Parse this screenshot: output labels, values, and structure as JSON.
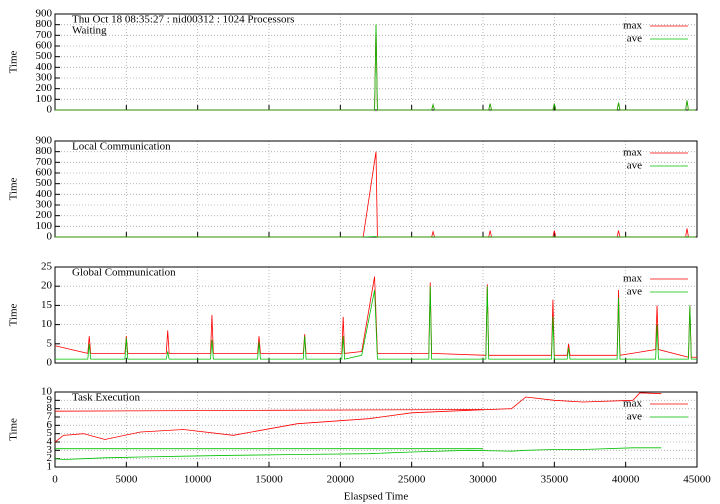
{
  "chart_data": [
    {
      "type": "line",
      "title": "Thu Oct 18 08:35:27 : nid00312 : 1024 Processors",
      "label": "Waiting",
      "ylabel": "Time",
      "x": [
        0,
        22400,
        22500,
        22600,
        26400,
        26500,
        26600,
        30400,
        30500,
        30600,
        34900,
        35000,
        35100,
        39400,
        39500,
        39600,
        44200,
        44300,
        44400,
        44900
      ],
      "series": [
        {
          "name": "max",
          "color": "#ff0000",
          "values": [
            0,
            0,
            800,
            0,
            0,
            50,
            0,
            0,
            60,
            0,
            0,
            60,
            0,
            0,
            70,
            0,
            0,
            90,
            0,
            0
          ]
        },
        {
          "name": "ave",
          "color": "#00c000",
          "values": [
            0,
            0,
            800,
            0,
            0,
            50,
            0,
            0,
            60,
            0,
            0,
            60,
            0,
            0,
            70,
            0,
            0,
            90,
            0,
            0
          ]
        }
      ],
      "xlim": [
        0,
        45000
      ],
      "xticks": [
        0,
        5000,
        10000,
        15000,
        20000,
        25000,
        30000,
        35000,
        40000,
        45000
      ],
      "ylim": [
        0,
        900
      ],
      "yticks": [
        0,
        100,
        200,
        300,
        400,
        500,
        600,
        700,
        800,
        900
      ],
      "grid": true,
      "legend": "upper right"
    },
    {
      "type": "line",
      "label": "Local Communication",
      "ylabel": "Time",
      "x": [
        0,
        21600,
        22500,
        22600,
        26400,
        26500,
        26600,
        30400,
        30500,
        30600,
        34900,
        35000,
        35100,
        39400,
        39500,
        39600,
        44200,
        44300,
        44400,
        44900
      ],
      "series": [
        {
          "name": "max",
          "color": "#ff0000",
          "values": [
            0,
            0,
            800,
            0,
            0,
            50,
            0,
            0,
            60,
            0,
            0,
            60,
            0,
            0,
            60,
            0,
            0,
            80,
            0,
            0
          ]
        },
        {
          "name": "ave",
          "color": "#00c000",
          "values": [
            0,
            0,
            5,
            0,
            0,
            2,
            0,
            0,
            2,
            0,
            0,
            2,
            0,
            0,
            2,
            0,
            0,
            3,
            0,
            0
          ]
        }
      ],
      "xlim": [
        0,
        45000
      ],
      "xticks": [
        0,
        5000,
        10000,
        15000,
        20000,
        25000,
        30000,
        35000,
        40000,
        45000
      ],
      "ylim": [
        0,
        900
      ],
      "yticks": [
        0,
        100,
        200,
        300,
        400,
        500,
        600,
        700,
        800,
        900
      ],
      "grid": true,
      "legend": "upper right"
    },
    {
      "type": "line",
      "label": "Global Communication",
      "ylabel": "Time",
      "x": [
        0,
        2300,
        2400,
        2500,
        4900,
        5000,
        5100,
        7800,
        7900,
        8000,
        10900,
        11000,
        11100,
        14200,
        14300,
        14400,
        17400,
        17500,
        17600,
        20100,
        20200,
        20300,
        21500,
        22400,
        22600,
        26200,
        26300,
        26400,
        30200,
        30300,
        30400,
        34800,
        34900,
        35000,
        35900,
        36000,
        36100,
        39400,
        39500,
        39600,
        42100,
        42200,
        42300,
        44400,
        44500,
        44600,
        45000
      ],
      "series": [
        {
          "name": "max",
          "color": "#ff0000",
          "values": [
            4.5,
            2.5,
            7,
            2.5,
            2.5,
            7,
            2.5,
            2.5,
            8.5,
            2.5,
            2.5,
            12.5,
            2.5,
            2.5,
            7,
            2.5,
            2.5,
            7.5,
            2.5,
            2.5,
            12,
            2.5,
            3,
            22.5,
            2.5,
            2.5,
            21,
            2.5,
            2,
            20.5,
            2,
            2,
            16.5,
            2,
            2,
            5,
            2,
            2,
            19,
            2,
            3.5,
            15,
            3.5,
            1.5,
            15,
            1.5,
            1.5
          ]
        },
        {
          "name": "ave",
          "color": "#00c000",
          "values": [
            1,
            1,
            5,
            1,
            1,
            6.5,
            1,
            1,
            3,
            1,
            1,
            6,
            1,
            1,
            5.5,
            1,
            1,
            7,
            1,
            1,
            7,
            1,
            2,
            19,
            1,
            1,
            20,
            1,
            1,
            20,
            1,
            1,
            12,
            1,
            1,
            4,
            1,
            1,
            17,
            1,
            1,
            10,
            1,
            1,
            15,
            1,
            1
          ]
        }
      ],
      "xlim": [
        0,
        45000
      ],
      "xticks": [
        0,
        5000,
        10000,
        15000,
        20000,
        25000,
        30000,
        35000,
        40000,
        45000
      ],
      "ylim": [
        0,
        25
      ],
      "yticks": [
        0,
        5,
        10,
        15,
        20,
        25
      ],
      "grid": true,
      "legend": "upper right"
    },
    {
      "type": "line",
      "label": "Task Execution",
      "ylabel": "Time",
      "xlabel": "Elaspsed Time",
      "x": [
        0,
        15000,
        30000,
        30000,
        0,
        600,
        2000,
        3500,
        6000,
        9000,
        12500,
        17000,
        22000,
        25000,
        29000,
        32000,
        33000,
        35000,
        37000,
        40500,
        41000,
        42500
      ],
      "series": [
        {
          "name": "max",
          "color": "#ff0000",
          "values": [
            7.7,
            7.8,
            7.9,
            null,
            4,
            4.8,
            5.0,
            4.3,
            5.2,
            5.5,
            4.8,
            6.2,
            6.8,
            7.5,
            7.8,
            8.0,
            9.4,
            9.0,
            8.8,
            9.0,
            9.9,
            9.8
          ]
        },
        {
          "name": "ave",
          "color": "#00c000",
          "values": [
            3.2,
            3.2,
            3.2,
            null,
            2,
            1.9,
            2.0,
            2.1,
            2.2,
            2.3,
            2.4,
            2.5,
            2.6,
            2.8,
            3.0,
            2.9,
            3.0,
            3.1,
            3.1,
            3.3,
            3.3,
            3.3
          ]
        }
      ],
      "xlim": [
        0,
        45000
      ],
      "xticks": [
        0,
        5000,
        10000,
        15000,
        20000,
        25000,
        30000,
        35000,
        40000,
        45000
      ],
      "ylim": [
        1,
        10
      ],
      "yticks": [
        1,
        2,
        3,
        4,
        5,
        6,
        7,
        8,
        9,
        10
      ],
      "grid": true,
      "legend": "upper right"
    }
  ]
}
